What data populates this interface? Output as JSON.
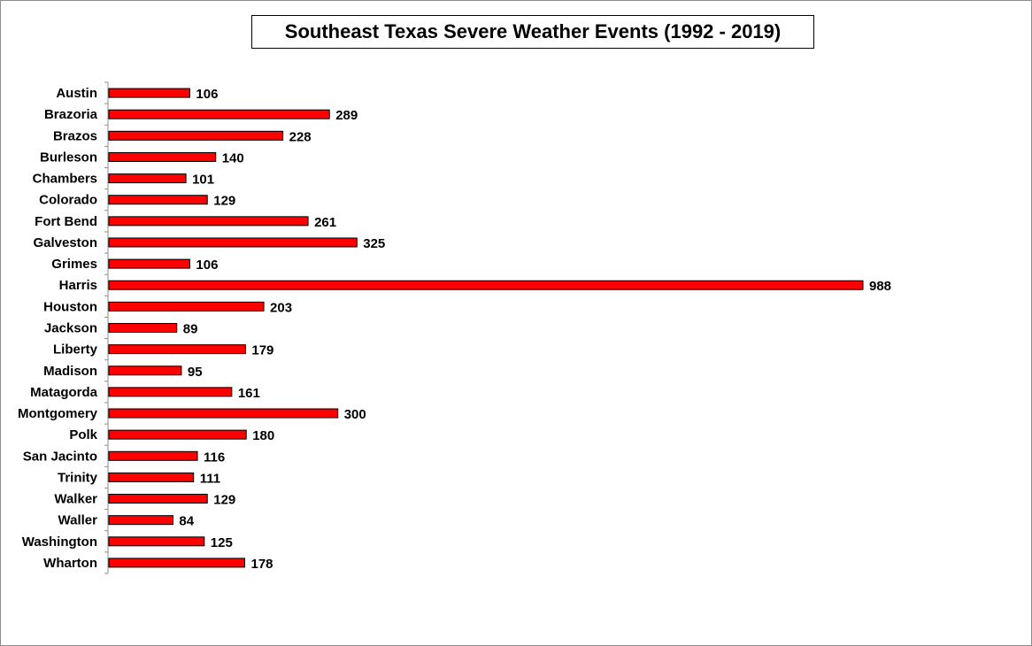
{
  "chart_data": {
    "type": "bar",
    "orientation": "horizontal",
    "title": "Southeast Texas Severe Weather Events (1992 - 2019)",
    "categories": [
      "Austin",
      "Brazoria",
      "Brazos",
      "Burleson",
      "Chambers",
      "Colorado",
      "Fort Bend",
      "Galveston",
      "Grimes",
      "Harris",
      "Houston",
      "Jackson",
      "Liberty",
      "Madison",
      "Matagorda",
      "Montgomery",
      "Polk",
      "San Jacinto",
      "Trinity",
      "Walker",
      "Waller",
      "Washington",
      "Wharton"
    ],
    "values": [
      106,
      289,
      228,
      140,
      101,
      129,
      261,
      325,
      106,
      988,
      203,
      89,
      179,
      95,
      161,
      300,
      180,
      116,
      111,
      129,
      84,
      125,
      178
    ],
    "bar_color": "#ff0000",
    "bar_outline": "#000000",
    "xlim": [
      0,
      1000
    ],
    "grid": false,
    "data_labels": true
  }
}
